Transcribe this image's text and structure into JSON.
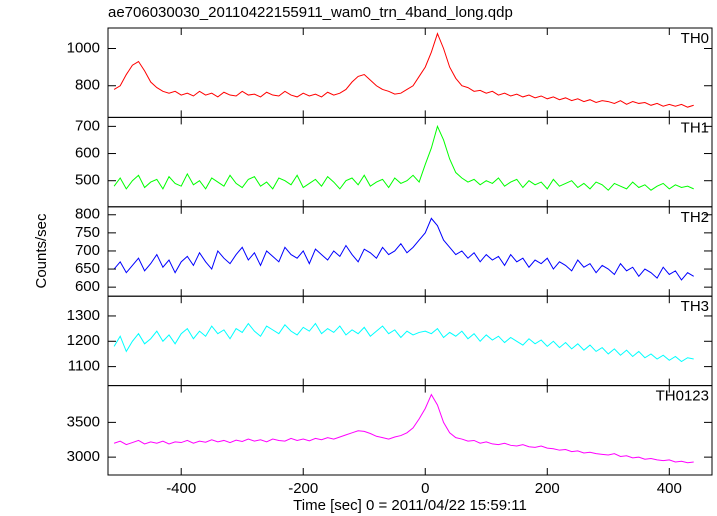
{
  "chart_data": {
    "type": "line",
    "title": "ae706030030_20110422155911_wam0_trn_4band_long.qdp",
    "xlabel": "Time [sec] 0 = 2011/04/22 15:59:11",
    "ylabel": "Counts/sec",
    "xlim": [
      -520,
      470
    ],
    "xticks": [
      -400,
      -200,
      0,
      200,
      400
    ],
    "x": [
      -510,
      -500,
      -490,
      -480,
      -470,
      -460,
      -450,
      -440,
      -430,
      -420,
      -410,
      -400,
      -390,
      -380,
      -370,
      -360,
      -350,
      -340,
      -330,
      -320,
      -310,
      -300,
      -290,
      -280,
      -270,
      -260,
      -250,
      -240,
      -230,
      -220,
      -210,
      -200,
      -190,
      -180,
      -170,
      -160,
      -150,
      -140,
      -130,
      -120,
      -110,
      -100,
      -90,
      -80,
      -70,
      -60,
      -50,
      -40,
      -30,
      -20,
      -10,
      0,
      10,
      20,
      30,
      40,
      50,
      60,
      70,
      80,
      90,
      100,
      110,
      120,
      130,
      140,
      150,
      160,
      170,
      180,
      190,
      200,
      210,
      220,
      230,
      240,
      250,
      260,
      270,
      280,
      290,
      300,
      310,
      320,
      330,
      340,
      350,
      360,
      370,
      380,
      390,
      400,
      410,
      420,
      430,
      440
    ],
    "series": [
      {
        "name": "TH0",
        "color": "#ff0000",
        "ylim": [
          630,
          1110
        ],
        "yticks": [
          800,
          1000
        ],
        "values": [
          780,
          800,
          860,
          910,
          930,
          880,
          820,
          790,
          770,
          760,
          770,
          750,
          760,
          745,
          770,
          750,
          760,
          740,
          765,
          750,
          745,
          770,
          750,
          755,
          740,
          765,
          750,
          745,
          770,
          750,
          740,
          760,
          745,
          755,
          740,
          765,
          750,
          760,
          780,
          820,
          850,
          860,
          830,
          800,
          780,
          770,
          755,
          760,
          780,
          800,
          850,
          900,
          980,
          1080,
          1000,
          900,
          840,
          800,
          790,
          770,
          775,
          760,
          770,
          750,
          760,
          745,
          755,
          740,
          750,
          735,
          745,
          730,
          740,
          725,
          735,
          720,
          730,
          715,
          725,
          710,
          720,
          715,
          705,
          720,
          700,
          715,
          705,
          710,
          695,
          705,
          690,
          700,
          690,
          700,
          685,
          695
        ]
      },
      {
        "name": "TH1",
        "color": "#00ff00",
        "ylim": [
          404,
          733
        ],
        "yticks": [
          500,
          600,
          700
        ],
        "values": [
          480,
          510,
          470,
          500,
          520,
          475,
          495,
          505,
          470,
          515,
          490,
          480,
          525,
          485,
          500,
          470,
          510,
          495,
          480,
          520,
          490,
          475,
          505,
          515,
          480,
          495,
          470,
          510,
          500,
          485,
          520,
          475,
          490,
          505,
          480,
          515,
          495,
          470,
          500,
          510,
          485,
          520,
          480,
          495,
          505,
          475,
          510,
          490,
          500,
          520,
          495,
          560,
          620,
          700,
          650,
          580,
          530,
          510,
          495,
          505,
          485,
          500,
          490,
          510,
          480,
          495,
          505,
          475,
          500,
          485,
          495,
          470,
          505,
          480,
          490,
          500,
          475,
          490,
          470,
          495,
          485,
          465,
          490,
          480,
          470,
          495,
          475,
          485,
          465,
          480,
          490,
          470,
          485,
          475,
          480,
          470
        ]
      },
      {
        "name": "TH2",
        "color": "#0000ff",
        "ylim": [
          575,
          822
        ],
        "yticks": [
          600,
          650,
          700,
          750,
          800
        ],
        "values": [
          650,
          670,
          640,
          660,
          680,
          645,
          665,
          690,
          655,
          675,
          640,
          670,
          685,
          660,
          695,
          670,
          650,
          700,
          680,
          665,
          690,
          710,
          675,
          695,
          660,
          700,
          685,
          670,
          710,
          690,
          680,
          700,
          665,
          705,
          690,
          675,
          700,
          685,
          715,
          690,
          670,
          705,
          695,
          680,
          710,
          690,
          700,
          720,
          695,
          710,
          730,
          750,
          790,
          770,
          730,
          710,
          690,
          700,
          680,
          695,
          670,
          690,
          675,
          685,
          660,
          690,
          670,
          680,
          655,
          675,
          665,
          680,
          650,
          670,
          660,
          645,
          675,
          655,
          665,
          640,
          660,
          650,
          635,
          665,
          645,
          655,
          630,
          650,
          640,
          625,
          655,
          635,
          645,
          620,
          640,
          630
        ]
      },
      {
        "name": "TH3",
        "color": "#00ffff",
        "ylim": [
          1025,
          1378
        ],
        "yticks": [
          1100,
          1200,
          1300
        ],
        "values": [
          1180,
          1220,
          1160,
          1200,
          1230,
          1190,
          1210,
          1240,
          1200,
          1225,
          1190,
          1230,
          1250,
          1210,
          1240,
          1220,
          1260,
          1230,
          1245,
          1210,
          1250,
          1235,
          1270,
          1240,
          1220,
          1260,
          1245,
          1230,
          1265,
          1240,
          1225,
          1255,
          1240,
          1270,
          1230,
          1250,
          1235,
          1260,
          1225,
          1245,
          1230,
          1255,
          1220,
          1240,
          1260,
          1230,
          1245,
          1215,
          1240,
          1225,
          1235,
          1240,
          1230,
          1250,
          1215,
          1235,
          1220,
          1240,
          1210,
          1230,
          1200,
          1225,
          1205,
          1220,
          1195,
          1215,
          1200,
          1185,
          1210,
          1190,
          1205,
          1180,
          1200,
          1175,
          1195,
          1170,
          1190,
          1165,
          1185,
          1160,
          1175,
          1150,
          1170,
          1145,
          1165,
          1140,
          1160,
          1135,
          1150,
          1130,
          1145,
          1125,
          1140,
          1120,
          1135,
          1130
        ]
      },
      {
        "name": "TH0123",
        "color": "#ff00ff",
        "ylim": [
          2743,
          4029
        ],
        "yticks": [
          3000,
          3500
        ],
        "values": [
          3200,
          3230,
          3180,
          3210,
          3240,
          3190,
          3220,
          3200,
          3230,
          3190,
          3220,
          3210,
          3240,
          3200,
          3230,
          3215,
          3250,
          3220,
          3240,
          3210,
          3245,
          3225,
          3260,
          3230,
          3250,
          3220,
          3260,
          3240,
          3230,
          3270,
          3240,
          3260,
          3235,
          3270,
          3250,
          3280,
          3260,
          3290,
          3320,
          3350,
          3380,
          3370,
          3340,
          3300,
          3280,
          3260,
          3290,
          3310,
          3350,
          3420,
          3550,
          3700,
          3900,
          3750,
          3500,
          3350,
          3280,
          3260,
          3230,
          3240,
          3200,
          3220,
          3190,
          3180,
          3200,
          3170,
          3160,
          3180,
          3150,
          3140,
          3160,
          3130,
          3120,
          3100,
          3110,
          3080,
          3090,
          3060,
          3070,
          3050,
          3040,
          3030,
          3050,
          3010,
          3020,
          2990,
          3000,
          2970,
          2980,
          2960,
          2950,
          2960,
          2930,
          2940,
          2920,
          2930
        ]
      }
    ]
  }
}
